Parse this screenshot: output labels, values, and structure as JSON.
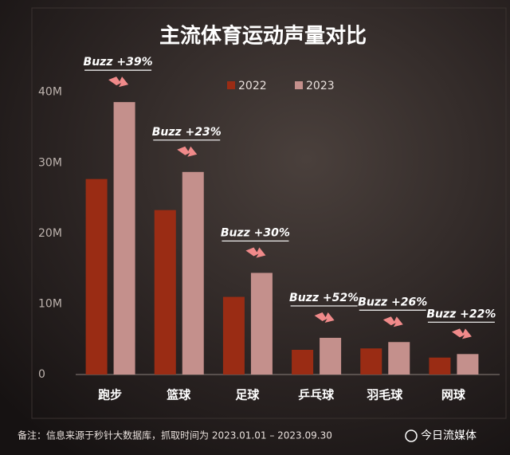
{
  "chart_data": {
    "type": "bar",
    "title": "主流体育运动声量对比",
    "categories": [
      "跑步",
      "篮球",
      "足球",
      "乒乓球",
      "羽毛球",
      "网球"
    ],
    "series": [
      {
        "name": "2022",
        "color": "#9a2c14",
        "values": [
          27700000,
          23300000,
          11000000,
          3500000,
          3700000,
          2400000
        ]
      },
      {
        "name": "2023",
        "color": "#c4908c",
        "values": [
          38600000,
          28700000,
          14400000,
          5200000,
          4600000,
          2900000
        ]
      }
    ],
    "annotations": [
      "Buzz +39%",
      "Buzz +23%",
      "Buzz +30%",
      "Buzz +52%",
      "Buzz +26%",
      "Buzz +22%"
    ],
    "ylim": [
      0,
      42000000
    ],
    "yticks": [
      0,
      {
        "value": 10000000,
        "label": "10M"
      },
      {
        "value": 20000000,
        "label": "20M"
      },
      {
        "value": 30000000,
        "label": "30M"
      },
      {
        "value": 40000000,
        "label": "40M"
      }
    ],
    "grid": false,
    "legend": "top",
    "note": "备注：信息来源于秒针大数据库，抓取时间为 2023.01.01 – 2023.09.30"
  },
  "watermark": "今日流媒体"
}
